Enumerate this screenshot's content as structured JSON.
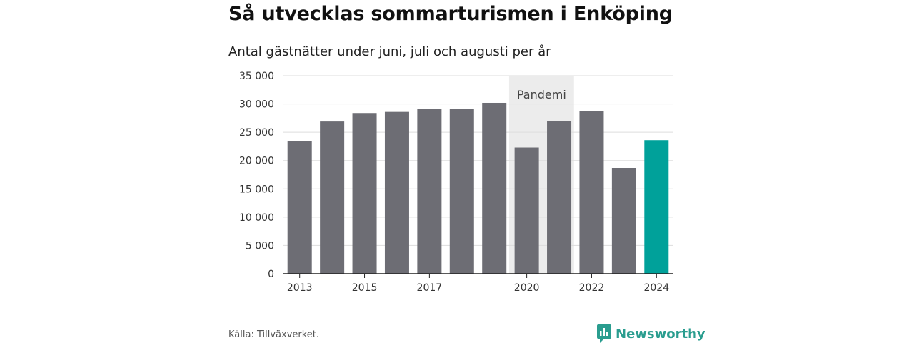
{
  "title": "Så utvecklas sommarturismen i Enköping",
  "subtitle": "Antal gästnätter under juni, juli och augusti per år",
  "source": "Källa: Tillväxverket.",
  "brand": {
    "name": "Newsworthy",
    "icon": "newsworthy-logo-icon",
    "color": "#2a9d8f"
  },
  "chart_data": {
    "type": "bar",
    "categories": [
      "2013",
      "2014",
      "2015",
      "2016",
      "2017",
      "2018",
      "2019",
      "2020",
      "2021",
      "2022",
      "2023",
      "2024"
    ],
    "values": [
      23500,
      26900,
      28400,
      28600,
      29100,
      29100,
      30200,
      22300,
      27000,
      28700,
      18700,
      23600
    ],
    "x_tick_labels": [
      "2013",
      "2015",
      "2017",
      "2020",
      "2022",
      "2024"
    ],
    "y_ticks": [
      0,
      5000,
      10000,
      15000,
      20000,
      25000,
      30000,
      35000
    ],
    "y_tick_labels": [
      "0",
      "5 000",
      "10 000",
      "15 000",
      "20 000",
      "25 000",
      "30 000",
      "35 000"
    ],
    "ylim": [
      0,
      35000
    ],
    "grid": true,
    "highlight_category": "2024",
    "colors": {
      "default": "#6d6d74",
      "highlight": "#00a19a",
      "band": "#ececec",
      "grid": "#dddddd",
      "axis": "#222222"
    },
    "annotation_band": {
      "label": "Pandemi",
      "from": "2020",
      "to": "2021"
    },
    "xlabel": "",
    "ylabel": ""
  }
}
